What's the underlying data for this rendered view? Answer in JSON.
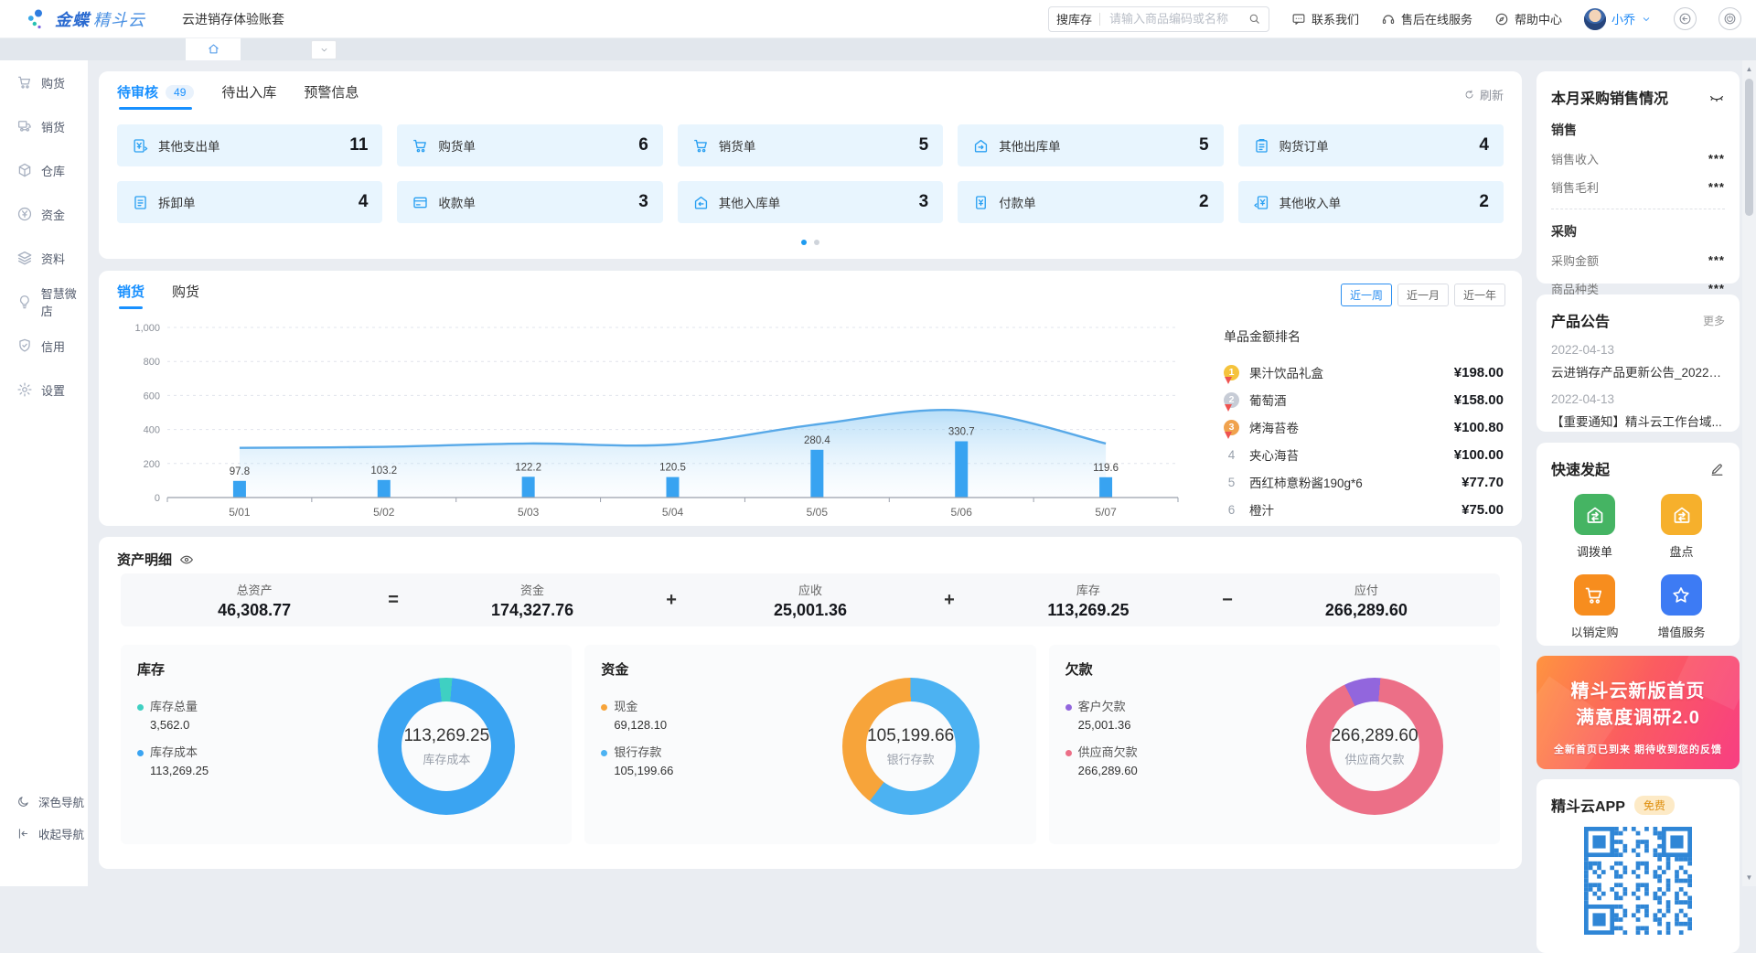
{
  "header": {
    "logo": {
      "bold": "金蝶",
      "light": "精斗云"
    },
    "account_title": "云进销存体验账套",
    "search": {
      "scope_label": "搜库存",
      "placeholder": "请输入商品编码或名称"
    },
    "links": {
      "contact": "联系我们",
      "after_sales": "售后在线服务",
      "help": "帮助中心"
    },
    "user": {
      "name": "小乔"
    }
  },
  "sidebar": {
    "items": [
      {
        "label": "购货",
        "icon": "cart"
      },
      {
        "label": "销货",
        "icon": "truck"
      },
      {
        "label": "仓库",
        "icon": "cube"
      },
      {
        "label": "资金",
        "icon": "yuan"
      },
      {
        "label": "资料",
        "icon": "layers"
      },
      {
        "label": "智慧微店",
        "icon": "bulb"
      },
      {
        "label": "信用",
        "icon": "shield"
      },
      {
        "label": "设置",
        "icon": "gear"
      }
    ],
    "footer": [
      {
        "label": "深色导航",
        "icon": "moon"
      },
      {
        "label": "收起导航",
        "icon": "collapse"
      }
    ]
  },
  "todo": {
    "tabs": [
      {
        "label": "待审核",
        "badge": "49",
        "active": true
      },
      {
        "label": "待出入库",
        "active": false
      },
      {
        "label": "预警信息",
        "active": false
      }
    ],
    "refresh_label": "刷新",
    "cards": [
      {
        "label": "其他支出单",
        "count": "11",
        "icon": "bill-out"
      },
      {
        "label": "购货单",
        "count": "6",
        "icon": "cart"
      },
      {
        "label": "销货单",
        "count": "5",
        "icon": "cart"
      },
      {
        "label": "其他出库单",
        "count": "5",
        "icon": "house-out"
      },
      {
        "label": "购货订单",
        "count": "4",
        "icon": "clipboard"
      },
      {
        "label": "拆卸单",
        "count": "4",
        "icon": "doc"
      },
      {
        "label": "收款单",
        "count": "3",
        "icon": "card"
      },
      {
        "label": "其他入库单",
        "count": "3",
        "icon": "house-in"
      },
      {
        "label": "付款单",
        "count": "2",
        "icon": "bill-pay"
      },
      {
        "label": "其他收入单",
        "count": "2",
        "icon": "bill-in"
      }
    ],
    "pages": 2,
    "active_page": 0
  },
  "trend": {
    "tabs": [
      {
        "label": "销货",
        "active": true
      },
      {
        "label": "购货",
        "active": false
      }
    ],
    "ranges": [
      {
        "label": "近一周",
        "active": true
      },
      {
        "label": "近一月",
        "active": false
      },
      {
        "label": "近一年",
        "active": false
      }
    ],
    "ranking": {
      "title": "单品金额排名",
      "items": [
        {
          "rank": 1,
          "name": "果汁饮品礼盒",
          "amount": "¥198.00"
        },
        {
          "rank": 2,
          "name": "葡萄酒",
          "amount": "¥158.00"
        },
        {
          "rank": 3,
          "name": "烤海苔卷",
          "amount": "¥100.80"
        },
        {
          "rank": 4,
          "name": "夹心海苔",
          "amount": "¥100.00"
        },
        {
          "rank": 5,
          "name": "西红柿意粉酱190g*6",
          "amount": "¥77.70"
        },
        {
          "rank": 6,
          "name": "橙汁",
          "amount": "¥75.00"
        }
      ]
    }
  },
  "chart_data": [
    {
      "type": "bar+area",
      "title": "销货 近一周",
      "categories": [
        "5/01",
        "5/02",
        "5/03",
        "5/04",
        "5/05",
        "5/06",
        "5/07"
      ],
      "bar_values": [
        97.8,
        103.2,
        122.2,
        120.5,
        280.4,
        330.7,
        119.6
      ],
      "area_values_estimated": [
        292,
        298,
        318,
        312,
        430,
        512,
        318
      ],
      "ylim": [
        0,
        1000
      ],
      "yticks": [
        0,
        200,
        400,
        600,
        800,
        1000
      ],
      "grid": true,
      "legend_position": "none"
    },
    {
      "type": "donut",
      "title": "库存",
      "slices": [
        {
          "label": "库存总量",
          "value": 3562.0,
          "color": "#3fd0c2"
        },
        {
          "label": "库存成本",
          "value": 113269.25,
          "color": "#3aa4f2"
        }
      ],
      "center_value": "113,269.25",
      "center_label": "库存成本",
      "start_angle": -6
    },
    {
      "type": "donut",
      "title": "资金",
      "slices": [
        {
          "label": "现金",
          "value": 69128.1,
          "color": "#f7a43a"
        },
        {
          "label": "银行存款",
          "value": 105199.66,
          "color": "#4cb2f2"
        }
      ],
      "center_value": "105,199.66",
      "center_label": "银行存款",
      "start_angle": 217
    },
    {
      "type": "donut",
      "title": "欠款",
      "slices": [
        {
          "label": "客户欠款",
          "value": 25001.36,
          "color": "#9266dd"
        },
        {
          "label": "供应商欠款",
          "value": 266289.6,
          "color": "#ec6f87"
        }
      ],
      "center_value": "266,289.60",
      "center_label": "供应商欠款",
      "start_angle": -26
    }
  ],
  "assets": {
    "title": "资产明细",
    "formula": {
      "result": {
        "label": "总资产",
        "value": "46,308.77"
      },
      "terms": [
        {
          "op": "=",
          "label": "资金",
          "value": "174,327.76"
        },
        {
          "op": "+",
          "label": "应收",
          "value": "25,001.36"
        },
        {
          "op": "+",
          "label": "库存",
          "value": "113,269.25"
        },
        {
          "op": "−",
          "label": "应付",
          "value": "266,289.60"
        }
      ]
    },
    "panels": [
      {
        "title": "库存",
        "chart": 1,
        "legend": [
          {
            "label": "库存总量",
            "value": "3,562.0"
          },
          {
            "label": "库存成本",
            "value": "113,269.25"
          }
        ]
      },
      {
        "title": "资金",
        "chart": 2,
        "legend": [
          {
            "label": "现金",
            "value": "69,128.10"
          },
          {
            "label": "银行存款",
            "value": "105,199.66"
          }
        ]
      },
      {
        "title": "欠款",
        "chart": 3,
        "legend": [
          {
            "label": "客户欠款",
            "value": "25,001.36"
          },
          {
            "label": "供应商欠款",
            "value": "266,289.60"
          }
        ]
      }
    ]
  },
  "right": {
    "month_summary": {
      "title": "本月采购销售情况",
      "groups": [
        {
          "title": "销售",
          "rows": [
            {
              "label": "销售收入",
              "value": "***"
            },
            {
              "label": "销售毛利",
              "value": "***"
            }
          ]
        },
        {
          "title": "采购",
          "rows": [
            {
              "label": "采购金额",
              "value": "***"
            },
            {
              "label": "商品种类",
              "value": "***"
            }
          ]
        }
      ]
    },
    "notices": {
      "title": "产品公告",
      "more": "更多",
      "items": [
        {
          "date": "2022-04-13",
          "text": "云进销存产品更新公告_20220..."
        },
        {
          "date": "2022-04-13",
          "text": "【重要通知】精斗云工作台域..."
        }
      ]
    },
    "quick": {
      "title": "快速发起",
      "items": [
        {
          "label": "调拨单",
          "icon": "house-swap",
          "color": "#45b463"
        },
        {
          "label": "盘点",
          "icon": "house-swap",
          "color": "#f6b02c"
        },
        {
          "label": "以销定购",
          "icon": "cart",
          "color": "#f78d1e"
        },
        {
          "label": "增值服务",
          "icon": "star",
          "color": "#3d7bf4"
        }
      ]
    },
    "banner": {
      "line1": "精斗云新版首页",
      "line2": "满意度调研2.0",
      "subtitle": "全新首页已到来  期待收到您的反馈"
    },
    "app": {
      "title": "精斗云APP",
      "badge": "免费"
    }
  }
}
